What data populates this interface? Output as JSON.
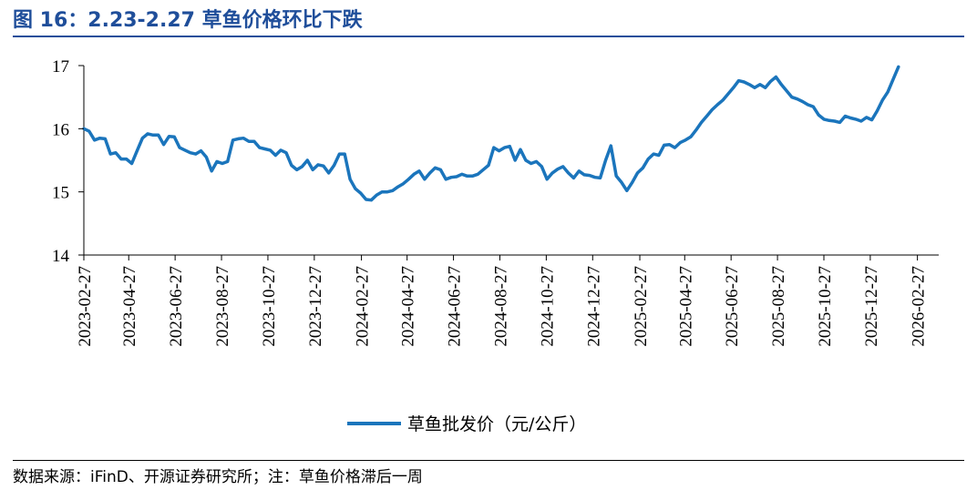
{
  "figure": {
    "title": "图 16：2.23-2.27 草鱼价格环比下跌",
    "source": "数据来源：iFinD、开源证券研究所；注：草鱼价格滞后一周"
  },
  "chart_data": {
    "type": "line",
    "title": "",
    "xlabel": "",
    "ylabel": "",
    "ylim": [
      14,
      17
    ],
    "yticks": [
      "14",
      "15",
      "16",
      "17"
    ],
    "xlim": [
      "2023-02-27",
      "2026-03-27"
    ],
    "xticks": [
      "2023-02-27",
      "2023-04-27",
      "2023-06-27",
      "2023-08-27",
      "2023-10-27",
      "2023-12-27",
      "2024-02-27",
      "2024-04-27",
      "2024-06-27",
      "2024-08-27",
      "2024-10-27",
      "2024-12-27",
      "2025-02-27",
      "2025-04-27",
      "2025-06-27",
      "2025-08-27",
      "2025-10-27",
      "2025-12-27",
      "2026-02-27"
    ],
    "grid": false,
    "legend_position": "bottom-center",
    "series": [
      {
        "name": "草鱼批发价（元/公斤）",
        "color": "#1b75bc",
        "points": [
          [
            "2023-02-27",
            16.0
          ],
          [
            "2023-03-06",
            15.96
          ],
          [
            "2023-03-13",
            15.82
          ],
          [
            "2023-03-20",
            15.85
          ],
          [
            "2023-03-27",
            15.84
          ],
          [
            "2023-04-03",
            15.6
          ],
          [
            "2023-04-10",
            15.62
          ],
          [
            "2023-04-17",
            15.52
          ],
          [
            "2023-04-24",
            15.52
          ],
          [
            "2023-05-01",
            15.45
          ],
          [
            "2023-05-08",
            15.65
          ],
          [
            "2023-05-15",
            15.85
          ],
          [
            "2023-05-22",
            15.92
          ],
          [
            "2023-05-29",
            15.9
          ],
          [
            "2023-06-05",
            15.9
          ],
          [
            "2023-06-12",
            15.75
          ],
          [
            "2023-06-19",
            15.88
          ],
          [
            "2023-06-26",
            15.87
          ],
          [
            "2023-07-03",
            15.7
          ],
          [
            "2023-07-10",
            15.66
          ],
          [
            "2023-07-17",
            15.62
          ],
          [
            "2023-07-24",
            15.6
          ],
          [
            "2023-07-31",
            15.65
          ],
          [
            "2023-08-07",
            15.55
          ],
          [
            "2023-08-14",
            15.33
          ],
          [
            "2023-08-21",
            15.48
          ],
          [
            "2023-08-28",
            15.45
          ],
          [
            "2023-09-04",
            15.48
          ],
          [
            "2023-09-11",
            15.82
          ],
          [
            "2023-09-18",
            15.84
          ],
          [
            "2023-09-25",
            15.85
          ],
          [
            "2023-10-02",
            15.8
          ],
          [
            "2023-10-09",
            15.8
          ],
          [
            "2023-10-16",
            15.7
          ],
          [
            "2023-10-23",
            15.68
          ],
          [
            "2023-10-30",
            15.66
          ],
          [
            "2023-11-06",
            15.58
          ],
          [
            "2023-11-13",
            15.66
          ],
          [
            "2023-11-20",
            15.62
          ],
          [
            "2023-11-27",
            15.42
          ],
          [
            "2023-12-04",
            15.35
          ],
          [
            "2023-12-11",
            15.4
          ],
          [
            "2023-12-18",
            15.5
          ],
          [
            "2023-12-25",
            15.35
          ],
          [
            "2024-01-01",
            15.43
          ],
          [
            "2024-01-08",
            15.41
          ],
          [
            "2024-01-15",
            15.3
          ],
          [
            "2024-01-22",
            15.42
          ],
          [
            "2024-01-29",
            15.6
          ],
          [
            "2024-02-05",
            15.6
          ],
          [
            "2024-02-12",
            15.2
          ],
          [
            "2024-02-19",
            15.05
          ],
          [
            "2024-02-26",
            14.98
          ],
          [
            "2024-03-04",
            14.88
          ],
          [
            "2024-03-11",
            14.87
          ],
          [
            "2024-03-18",
            14.95
          ],
          [
            "2024-03-25",
            15.0
          ],
          [
            "2024-04-01",
            15.0
          ],
          [
            "2024-04-08",
            15.02
          ],
          [
            "2024-04-15",
            15.08
          ],
          [
            "2024-04-22",
            15.13
          ],
          [
            "2024-04-29",
            15.2
          ],
          [
            "2024-05-06",
            15.28
          ],
          [
            "2024-05-13",
            15.33
          ],
          [
            "2024-05-20",
            15.2
          ],
          [
            "2024-05-27",
            15.3
          ],
          [
            "2024-06-03",
            15.38
          ],
          [
            "2024-06-10",
            15.35
          ],
          [
            "2024-06-17",
            15.2
          ],
          [
            "2024-06-24",
            15.23
          ],
          [
            "2024-07-01",
            15.24
          ],
          [
            "2024-07-08",
            15.28
          ],
          [
            "2024-07-15",
            15.25
          ],
          [
            "2024-07-22",
            15.25
          ],
          [
            "2024-07-29",
            15.28
          ],
          [
            "2024-08-05",
            15.35
          ],
          [
            "2024-08-12",
            15.42
          ],
          [
            "2024-08-19",
            15.7
          ],
          [
            "2024-08-26",
            15.65
          ],
          [
            "2024-09-02",
            15.7
          ],
          [
            "2024-09-09",
            15.72
          ],
          [
            "2024-09-16",
            15.5
          ],
          [
            "2024-09-23",
            15.67
          ],
          [
            "2024-09-30",
            15.5
          ],
          [
            "2024-10-07",
            15.45
          ],
          [
            "2024-10-14",
            15.48
          ],
          [
            "2024-10-21",
            15.4
          ],
          [
            "2024-10-28",
            15.2
          ],
          [
            "2024-11-04",
            15.3
          ],
          [
            "2024-11-11",
            15.36
          ],
          [
            "2024-11-18",
            15.4
          ],
          [
            "2024-11-25",
            15.3
          ],
          [
            "2024-12-02",
            15.22
          ],
          [
            "2024-12-09",
            15.33
          ],
          [
            "2024-12-16",
            15.27
          ],
          [
            "2024-12-23",
            15.26
          ],
          [
            "2024-12-30",
            15.23
          ],
          [
            "2025-01-06",
            15.22
          ],
          [
            "2025-01-13",
            15.5
          ],
          [
            "2025-01-20",
            15.73
          ],
          [
            "2025-01-27",
            15.25
          ],
          [
            "2025-02-03",
            15.15
          ],
          [
            "2025-02-10",
            15.02
          ],
          [
            "2025-02-17",
            15.15
          ],
          [
            "2025-02-24",
            15.3
          ],
          [
            "2025-03-03",
            15.38
          ],
          [
            "2025-03-10",
            15.52
          ],
          [
            "2025-03-17",
            15.6
          ],
          [
            "2025-03-24",
            15.58
          ],
          [
            "2025-03-31",
            15.74
          ],
          [
            "2025-04-07",
            15.75
          ],
          [
            "2025-04-14",
            15.7
          ],
          [
            "2025-04-21",
            15.78
          ],
          [
            "2025-04-28",
            15.82
          ],
          [
            "2025-05-05",
            15.87
          ],
          [
            "2025-05-12",
            15.98
          ],
          [
            "2025-05-19",
            16.1
          ],
          [
            "2025-05-26",
            16.2
          ],
          [
            "2025-06-02",
            16.3
          ],
          [
            "2025-06-09",
            16.38
          ],
          [
            "2025-06-16",
            16.45
          ],
          [
            "2025-06-23",
            16.55
          ],
          [
            "2025-06-30",
            16.65
          ],
          [
            "2025-07-07",
            16.76
          ],
          [
            "2025-07-14",
            16.74
          ],
          [
            "2025-07-21",
            16.7
          ],
          [
            "2025-07-28",
            16.65
          ],
          [
            "2025-08-04",
            16.7
          ],
          [
            "2025-08-11",
            16.65
          ],
          [
            "2025-08-18",
            16.75
          ],
          [
            "2025-08-25",
            16.82
          ],
          [
            "2025-09-01",
            16.7
          ],
          [
            "2025-09-08",
            16.6
          ],
          [
            "2025-09-15",
            16.5
          ],
          [
            "2025-09-22",
            16.47
          ],
          [
            "2025-09-29",
            16.43
          ],
          [
            "2025-10-06",
            16.38
          ],
          [
            "2025-10-13",
            16.35
          ],
          [
            "2025-10-20",
            16.22
          ],
          [
            "2025-10-27",
            16.15
          ],
          [
            "2025-11-03",
            16.13
          ],
          [
            "2025-11-10",
            16.12
          ],
          [
            "2025-11-17",
            16.1
          ],
          [
            "2025-11-24",
            16.2
          ],
          [
            "2025-12-01",
            16.17
          ],
          [
            "2025-12-08",
            16.15
          ],
          [
            "2025-12-15",
            16.12
          ],
          [
            "2025-12-22",
            16.18
          ],
          [
            "2025-12-29",
            16.14
          ],
          [
            "2026-01-05",
            16.28
          ],
          [
            "2026-01-12",
            16.45
          ],
          [
            "2026-01-19",
            16.58
          ],
          [
            "2026-01-26",
            16.78
          ],
          [
            "2026-02-02",
            16.98
          ]
        ]
      }
    ]
  }
}
